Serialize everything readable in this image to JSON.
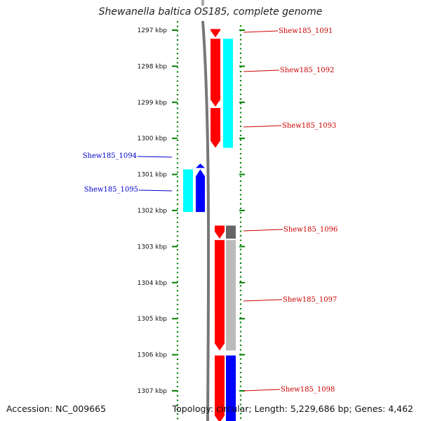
{
  "title": "Shewanella baltica OS185, complete genome",
  "accession_label": "Accession: NC_009665",
  "summary_label": "Topology: circular; Length: 5,229,686 bp; Genes: 4,462",
  "colors": {
    "forward_gene": "#ff0000",
    "reverse_gene": "#0000ff",
    "cds_cyan": "#00ffff",
    "cds_dark": "#666666",
    "cds_light": "#bbbbbb",
    "tick": "#008000",
    "backbone": "#777777"
  },
  "scale": {
    "unit": "kbp",
    "ticks": [
      1297,
      1298,
      1299,
      1300,
      1301,
      1302,
      1303,
      1304,
      1305,
      1306,
      1307
    ],
    "tick_labels": [
      "1297 kbp",
      "1298 kbp",
      "1299 kbp",
      "1300 kbp",
      "1301 kbp",
      "1302 kbp",
      "1303 kbp",
      "1304 kbp",
      "1305 kbp",
      "1306 kbp",
      "1307 kbp"
    ]
  },
  "genes": [
    {
      "id": "Shew185_1091",
      "strand": "forward",
      "start_kbp": 1296.95,
      "end_kbp": 1297.22
    },
    {
      "id": "Shew185_1092",
      "strand": "forward",
      "start_kbp": 1297.22,
      "end_kbp": 1299.14
    },
    {
      "id": "Shew185_1093",
      "strand": "forward",
      "start_kbp": 1299.14,
      "end_kbp": 1300.28
    },
    {
      "id": "Shew185_1094",
      "strand": "reverse",
      "start_kbp": 1300.68,
      "end_kbp": 1300.84
    },
    {
      "id": "Shew185_1095",
      "strand": "reverse",
      "start_kbp": 1300.84,
      "end_kbp": 1302.06
    },
    {
      "id": "Shew185_1096",
      "strand": "forward",
      "start_kbp": 1302.4,
      "end_kbp": 1302.8
    },
    {
      "id": "Shew185_1097",
      "strand": "forward",
      "start_kbp": 1302.8,
      "end_kbp": 1305.9
    },
    {
      "id": "Shew185_1098",
      "strand": "forward",
      "start_kbp": 1306.0,
      "end_kbp": 1307.9
    }
  ],
  "cds_tracks": [
    {
      "strand": "forward",
      "color": "cyan",
      "start_kbp": 1297.22,
      "end_kbp": 1300.28
    },
    {
      "strand": "reverse",
      "color": "cyan",
      "start_kbp": 1300.84,
      "end_kbp": 1302.06
    },
    {
      "strand": "forward",
      "color": "dark",
      "start_kbp": 1302.4,
      "end_kbp": 1302.8
    },
    {
      "strand": "forward",
      "color": "light",
      "start_kbp": 1302.8,
      "end_kbp": 1305.9
    },
    {
      "strand": "forward",
      "color": "blue",
      "start_kbp": 1306.0,
      "end_kbp": 1307.9
    }
  ]
}
